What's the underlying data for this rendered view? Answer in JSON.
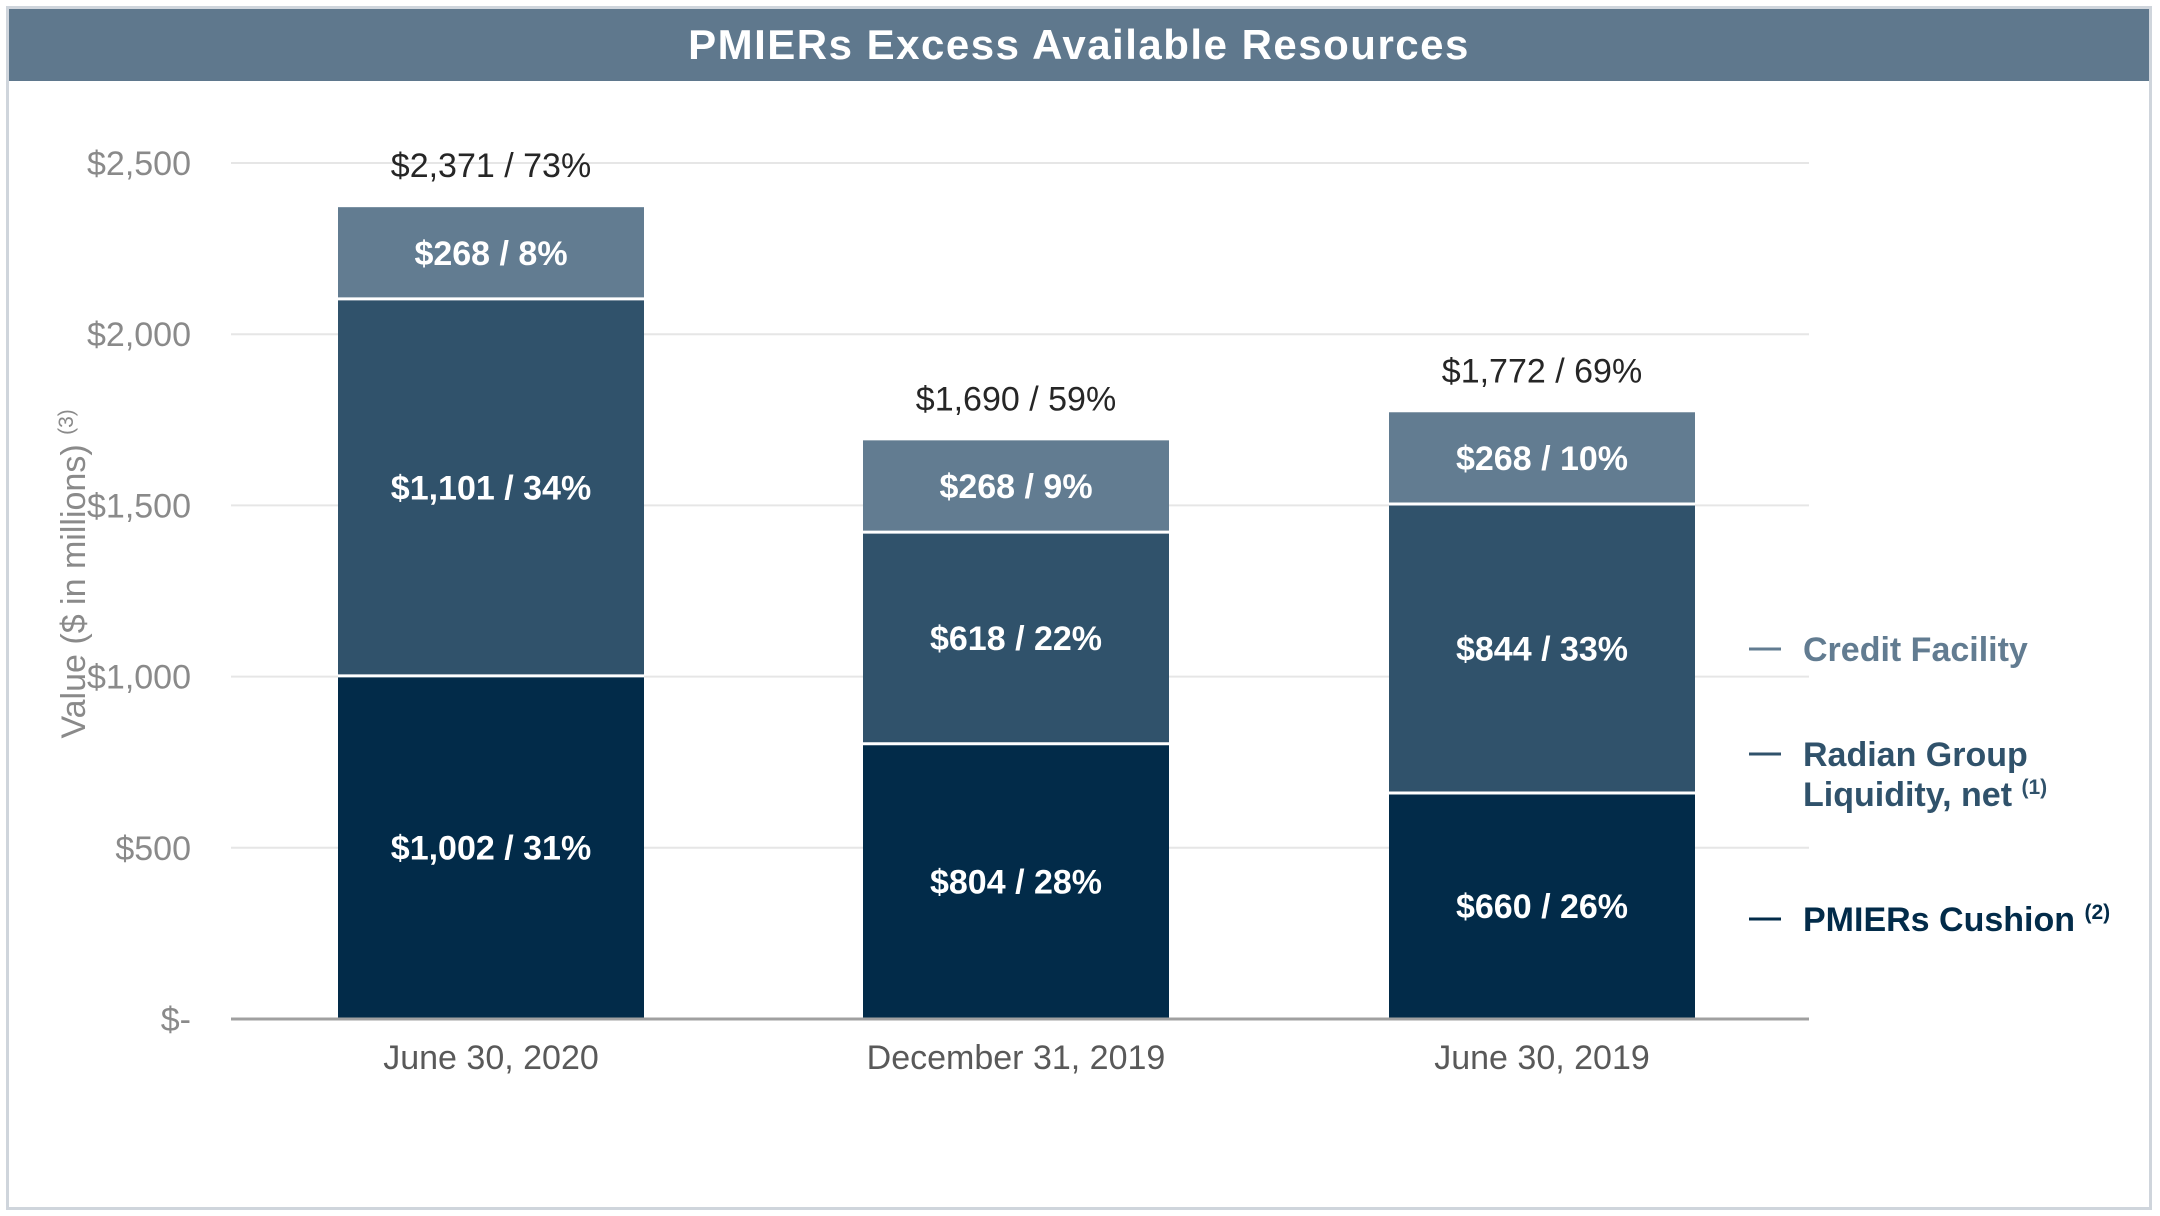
{
  "title": "PMIERs Excess Available Resources",
  "colors": {
    "title_bar": "#5f788d",
    "pmiers_cushion": "#022b49",
    "radian_group_liquidity": "#30526b",
    "credit_facility": "#627c91",
    "gridline": "#e6e6e6",
    "axis_line": "#a0a0a0"
  },
  "chart_data": {
    "type": "bar",
    "stacked": true,
    "categories": [
      "June 30, 2020",
      "December 31, 2019",
      "June 30, 2019"
    ],
    "series": [
      {
        "name": "PMIERs Cushion",
        "superscript": "(2)",
        "values": [
          1002,
          804,
          660
        ],
        "labels": [
          "$1,002 / 31%",
          "$804 / 28%",
          "$660 / 26%"
        ]
      },
      {
        "name": "Radian Group Liquidity, net",
        "name_lines": [
          "Radian Group",
          "Liquidity, net"
        ],
        "superscript": "(1)",
        "values": [
          1101,
          618,
          844
        ],
        "labels": [
          "$1,101 / 34%",
          "$618 / 22%",
          "$844 / 33%"
        ]
      },
      {
        "name": "Credit Facility",
        "superscript": "",
        "values": [
          268,
          268,
          268
        ],
        "labels": [
          "$268 / 8%",
          "$268 / 9%",
          "$268 / 10%"
        ]
      }
    ],
    "totals": [
      2371,
      1690,
      1772
    ],
    "total_labels": [
      "$2,371 / 73%",
      "$1,690 / 59%",
      "$1,772 / 69%"
    ],
    "ylabel": "Value ($ in millions)",
    "ylabel_superscript": "(3)",
    "ylim": [
      0,
      2500
    ],
    "yticks": [
      0,
      500,
      1000,
      1500,
      2000,
      2500
    ],
    "ytick_labels": [
      "$-",
      "$500",
      "$1,000",
      "$1,500",
      "$2,000",
      "$2,500"
    ],
    "grid": true,
    "legend_position": "right"
  }
}
